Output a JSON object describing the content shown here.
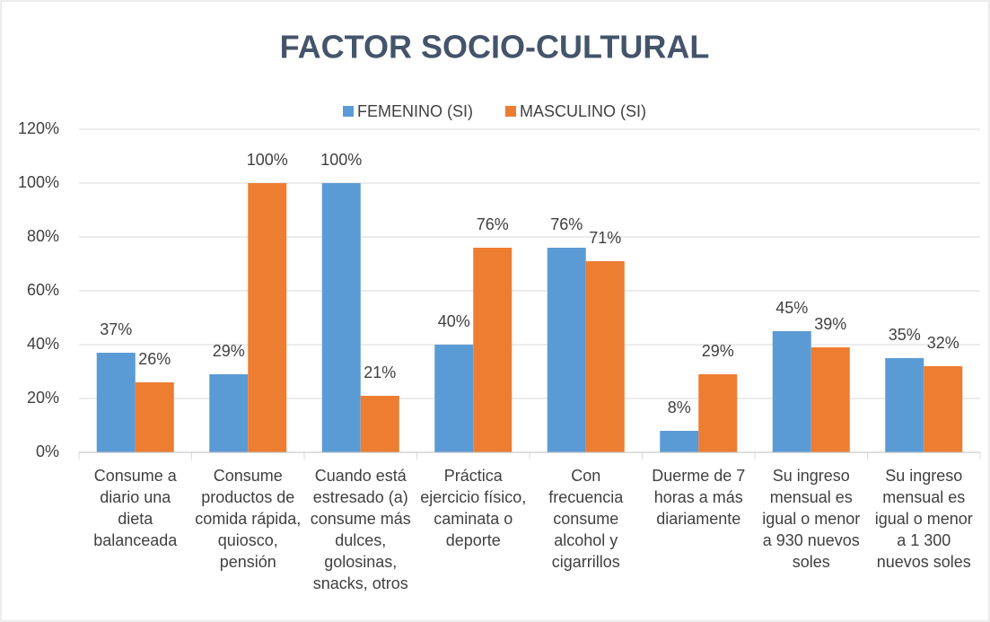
{
  "chart_data": {
    "type": "bar",
    "title": "FACTOR SOCIO-CULTURAL",
    "categories": [
      "Consume a diario una dieta balanceada",
      "Consume productos de comida rápida, quiosco, pensión",
      "Cuando está estresado (a) consume más dulces, golosinas, snacks, otros",
      "Práctica ejercicio físico, caminata o deporte",
      "Con frecuencia consume alcohol y cigarrillos",
      "Duerme de 7 horas a más diariamente",
      "Su ingreso mensual es igual o menor a 930 nuevos soles",
      "Su ingreso mensual es igual o menor a 1 300 nuevos soles"
    ],
    "series": [
      {
        "name": "FEMENINO (SI)",
        "color": "#5b9bd5",
        "values": [
          37,
          29,
          100,
          40,
          76,
          8,
          45,
          35
        ],
        "value_labels": [
          "37%",
          "29%",
          "100%",
          "40%",
          "76%",
          "8%",
          "45%",
          "35%"
        ]
      },
      {
        "name": "MASCULINO (SI)",
        "color": "#ed7d31",
        "values": [
          26,
          100,
          21,
          76,
          71,
          29,
          39,
          32
        ],
        "value_labels": [
          "26%",
          "100%",
          "21%",
          "76%",
          "71%",
          "29%",
          "39%",
          "32%"
        ]
      }
    ],
    "ylim": [
      0,
      120
    ],
    "yticks": [
      {
        "value": 0,
        "label": "0%"
      },
      {
        "value": 20,
        "label": "20%"
      },
      {
        "value": 40,
        "label": "40%"
      },
      {
        "value": 60,
        "label": "60%"
      },
      {
        "value": 80,
        "label": "80%"
      },
      {
        "value": 100,
        "label": "100%"
      },
      {
        "value": 120,
        "label": "120%"
      }
    ],
    "grid": true,
    "legend": "top"
  }
}
